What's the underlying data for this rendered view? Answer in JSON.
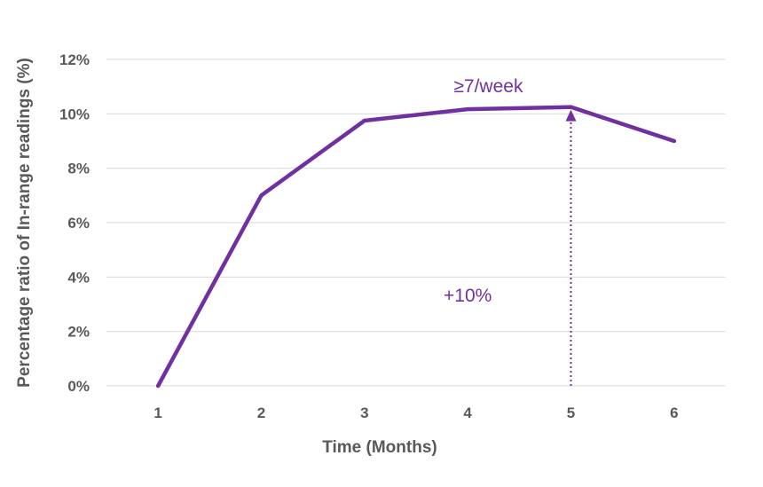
{
  "chart_data": {
    "type": "line",
    "title": "",
    "xlabel": "Time (Months)",
    "ylabel": "Percentage ratio of In-range readings  (%)",
    "x": [
      1,
      2,
      3,
      4,
      5,
      6
    ],
    "x_tick_labels": [
      "1",
      "2",
      "3",
      "4",
      "5",
      "6"
    ],
    "y_tick_labels": [
      "0%",
      "2%",
      "4%",
      "6%",
      "8%",
      "10%",
      "12%"
    ],
    "ylim": [
      0,
      12
    ],
    "grid": true,
    "series": [
      {
        "values": [
          0,
          7.0,
          9.75,
          10.17,
          10.25,
          9.0
        ],
        "color": "#7030a0"
      }
    ],
    "annotations": [
      {
        "text": "≥7/week",
        "x": 4.2,
        "y": 10.8,
        "color": "#7030a0"
      },
      {
        "text": "+10%",
        "x": 4.0,
        "y": 3.1,
        "color": "#7030a0"
      }
    ],
    "arrow": {
      "x": 5,
      "from": 0,
      "to": 10.25,
      "style": "dotted",
      "color": "#7030a0"
    }
  }
}
